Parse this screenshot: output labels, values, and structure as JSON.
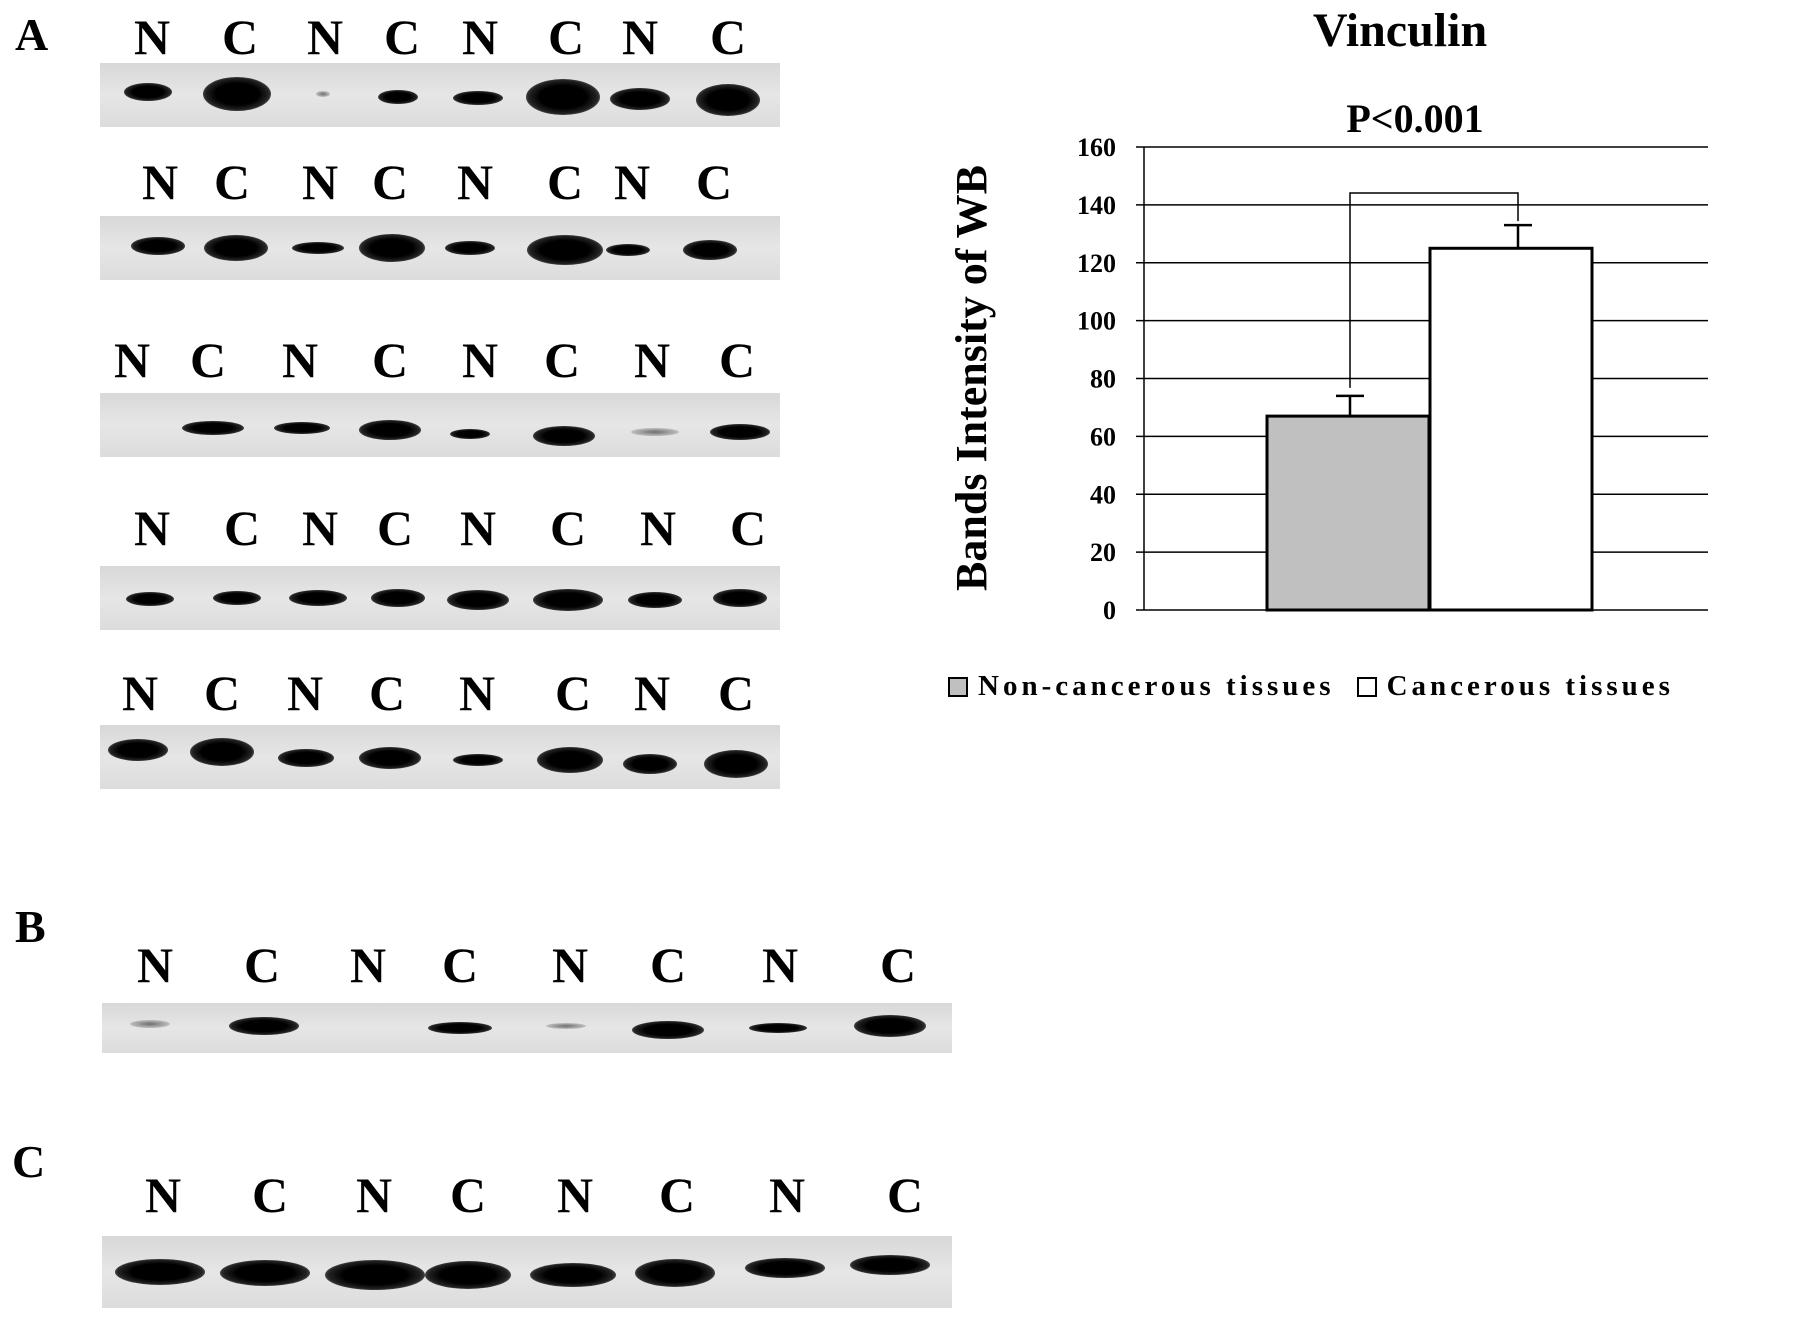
{
  "panels": {
    "a": {
      "label": "A"
    },
    "b": {
      "label": "B"
    },
    "c": {
      "label": "C"
    }
  },
  "lane_labels": [
    "N",
    "C",
    "N",
    "C",
    "N",
    "C",
    "N",
    "C"
  ],
  "chart_data": {
    "type": "bar",
    "title": "Vinculin",
    "annotation": "P<0.001",
    "ylabel": "Bands Intensity of WB",
    "xlabel": "",
    "ylim": [
      0,
      160
    ],
    "yticks": [
      0,
      20,
      40,
      60,
      80,
      100,
      120,
      140,
      160
    ],
    "grid": true,
    "legend_position": "bottom",
    "categories": [
      "Non-cancerous tissues",
      "Cancerous tissues"
    ],
    "values": [
      67,
      125
    ],
    "errors": [
      7,
      8
    ],
    "colors": [
      "#c0c0c0",
      "#ffffff"
    ],
    "legend": [
      "Non-cancerous tissues",
      "Cancerous tissues"
    ]
  }
}
